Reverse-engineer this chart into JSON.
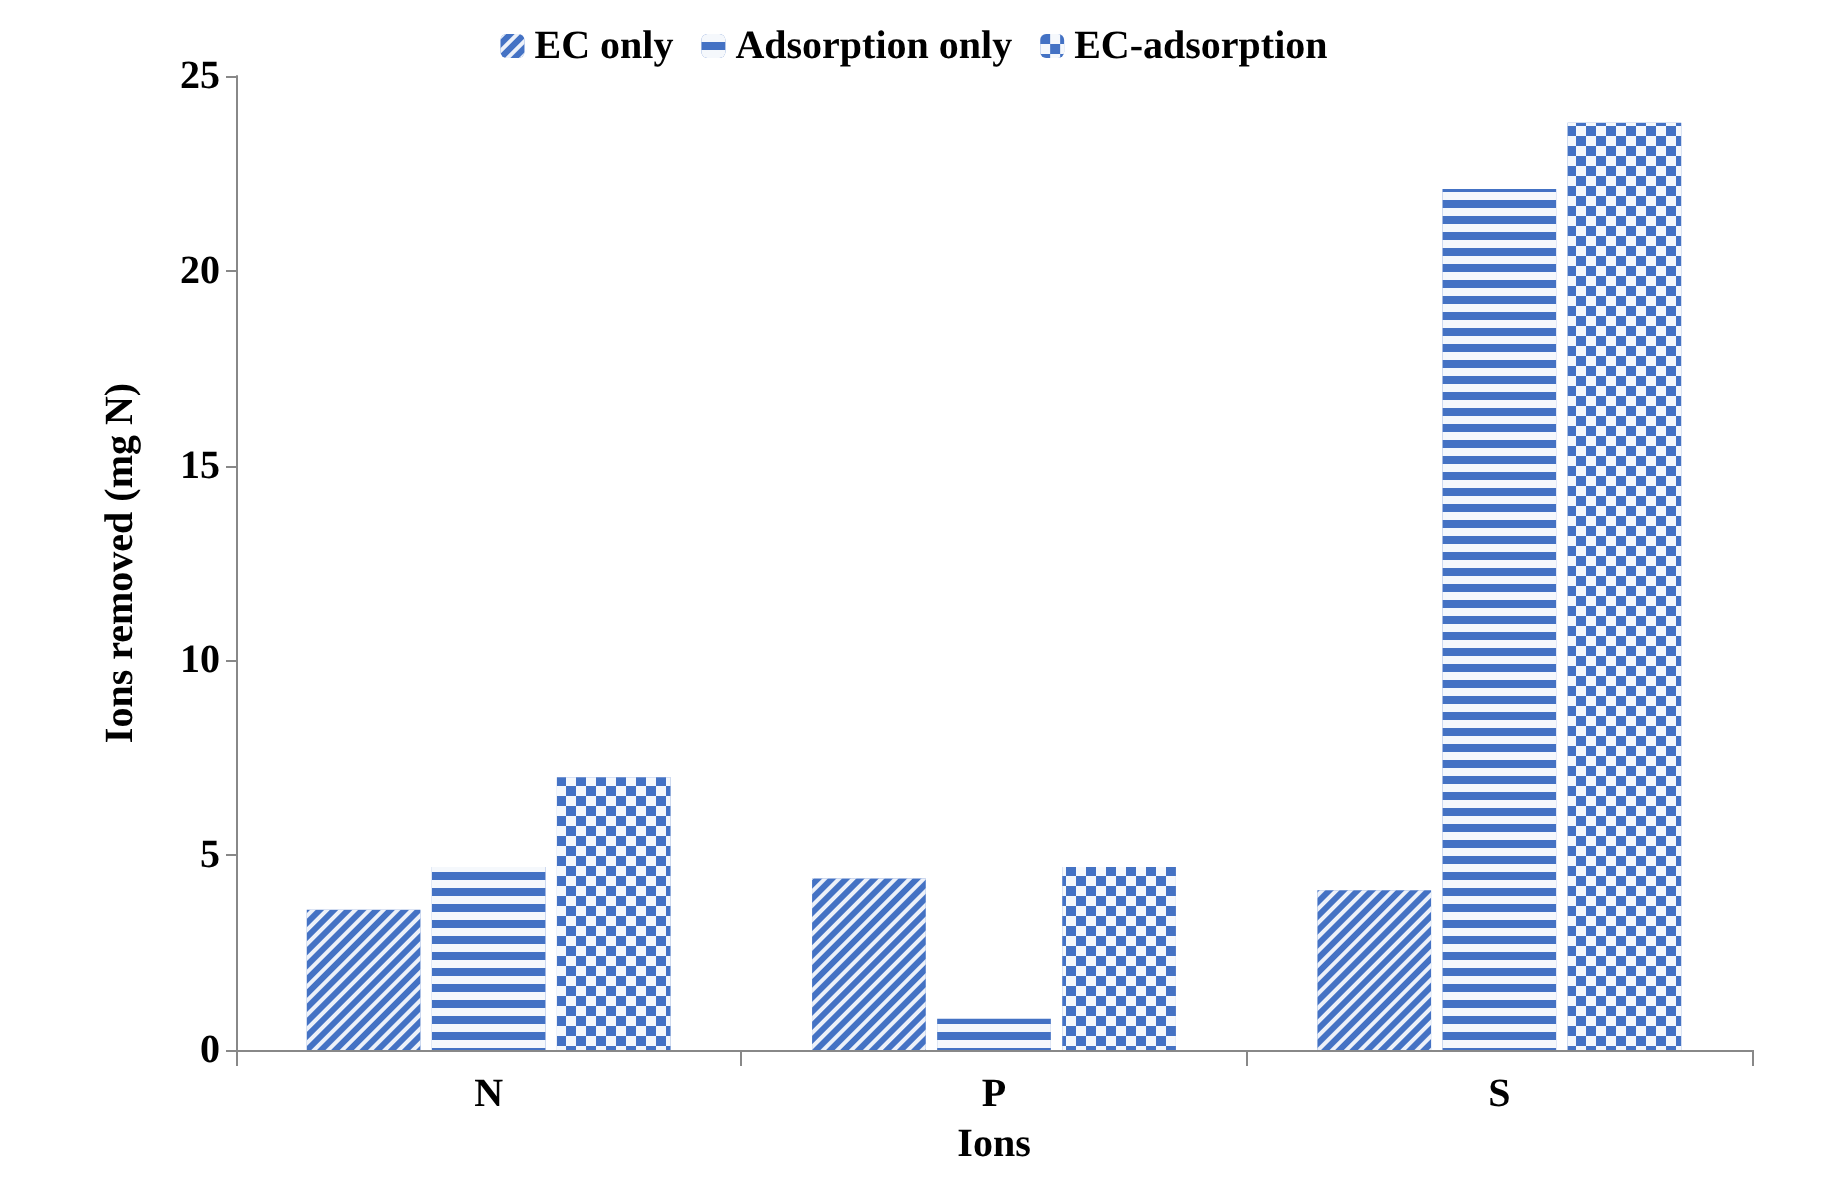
{
  "chart_data": {
    "type": "bar",
    "xlabel": "Ions",
    "ylabel": "Ions removed (mg N)",
    "categories": [
      "N",
      "P",
      "S"
    ],
    "series": [
      {
        "name": "EC only",
        "color": "#4472c4",
        "values": [
          3.6,
          4.4,
          4.1
        ]
      },
      {
        "name": "Adsorption only",
        "color": "#4472c4",
        "values": [
          4.7,
          0.8,
          22.1
        ]
      },
      {
        "name": "EC-adsorption",
        "color": "#4472c4",
        "values": [
          7.0,
          4.7,
          23.8
        ]
      }
    ],
    "ylim": [
      0,
      25
    ],
    "yticks": [
      0,
      5,
      10,
      15,
      20,
      25
    ],
    "grid": false,
    "legend": "top"
  }
}
